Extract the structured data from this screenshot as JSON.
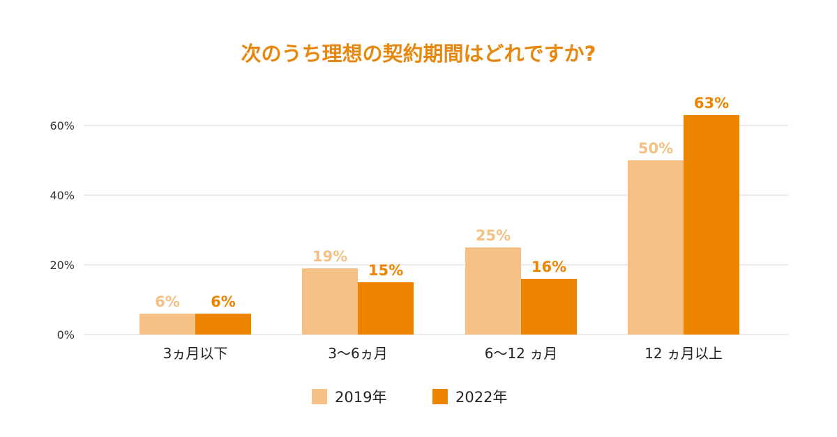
{
  "colors": {
    "title": "#e8870e",
    "series_2019": "#f5c084",
    "series_2022": "#ec8400",
    "grid": "#e6e6e6",
    "axis_text": "#333333"
  },
  "chart_data": {
    "type": "bar",
    "title": "次のうち理想の契約期間はどれですか?",
    "xlabel": "",
    "ylabel": "",
    "categories": [
      "3ヵ月以下",
      "3〜6ヵ月",
      "6〜12 ヵ月",
      "12 ヵ月以上"
    ],
    "series": [
      {
        "name": "2019年",
        "values": [
          6,
          19,
          25,
          50
        ],
        "labels": [
          "6%",
          "19%",
          "25%",
          "50%"
        ]
      },
      {
        "name": "2022年",
        "values": [
          6,
          15,
          16,
          63
        ],
        "labels": [
          "6%",
          "15%",
          "16%",
          "63%"
        ]
      }
    ],
    "ylim": [
      0,
      60
    ],
    "yticks": [
      0,
      20,
      40,
      60
    ],
    "ytick_labels": [
      "0%",
      "20%",
      "40%",
      "60%"
    ],
    "grid": true,
    "legend_position": "bottom"
  }
}
